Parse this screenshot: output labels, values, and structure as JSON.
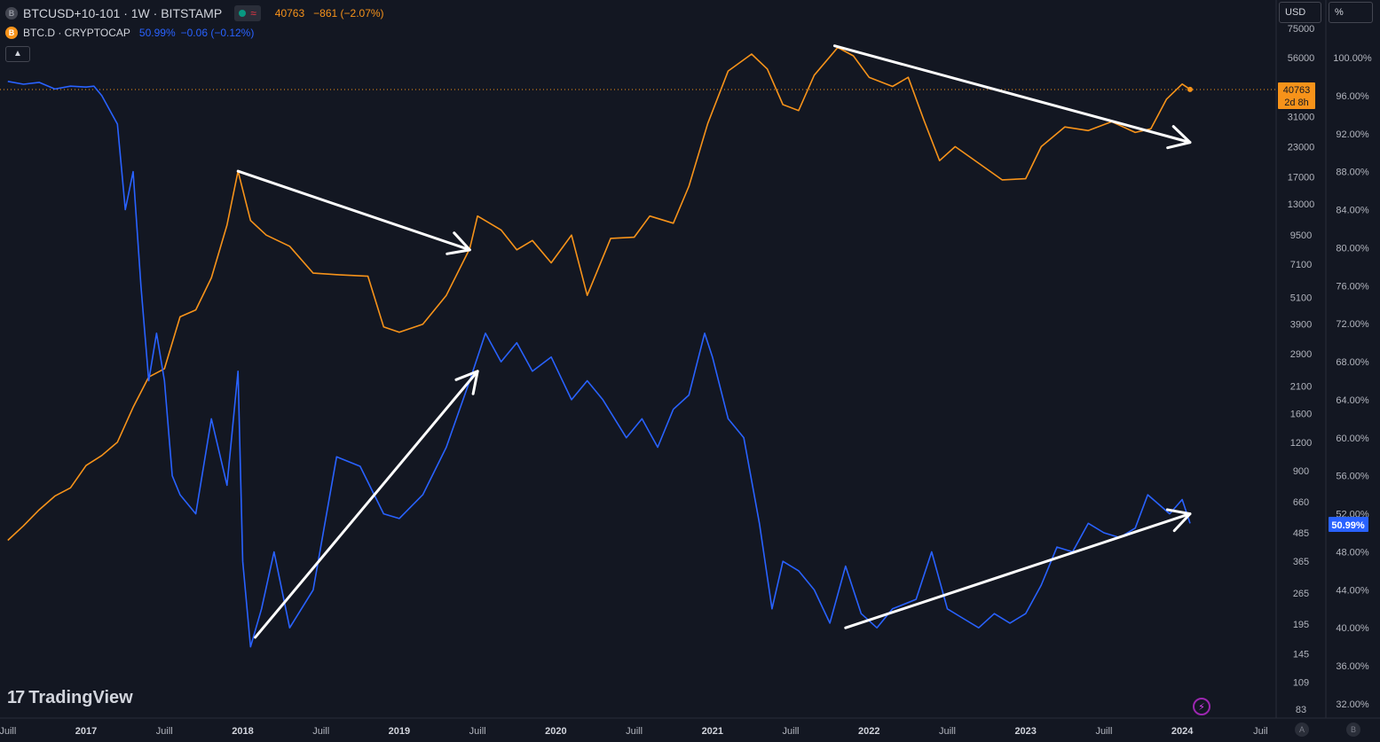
{
  "header": {
    "symbol_icon": "B",
    "title": "BTCUSD+10-101 · 1W · BITSTAMP",
    "status_icons": [
      "market-open-dot-icon",
      "wave-icon"
    ],
    "price": "40763",
    "change": "−861 (−2.07%)",
    "series2_icon": "B",
    "series2_title": "BTC.D · CRYPTOCAP",
    "series2_value": "50.99%",
    "series2_change": "−0.06 (−0.12%)",
    "collapse_icon": "chevron-up-icon"
  },
  "scale_buttons": {
    "usd": "USD",
    "percent": "%"
  },
  "branding": {
    "logo_text": "TradingView",
    "logo_mark": "17"
  },
  "bottom_buttons": {
    "auto": "A",
    "b": "B"
  },
  "colors": {
    "background": "#131722",
    "btc": "#f7931a",
    "dominance": "#2962ff",
    "arrows": "#ffffff",
    "grid": "#2a2e39"
  },
  "chart_data": {
    "type": "line",
    "x_ticks": [
      "Juill",
      "2017",
      "Juill",
      "2018",
      "Juill",
      "2019",
      "Juill",
      "2020",
      "Juill",
      "2021",
      "Juill",
      "2022",
      "Juill",
      "2023",
      "Juill",
      "2024",
      "Juil"
    ],
    "left_axis": {
      "unit": "USD",
      "scale": "log",
      "ticks": [
        75000,
        56000,
        41000,
        31000,
        23000,
        17000,
        13000,
        9500,
        7100,
        5100,
        3900,
        2900,
        2100,
        1600,
        1200,
        900,
        660,
        485,
        365,
        265,
        195,
        145,
        109,
        83
      ],
      "tick_labels": [
        "75000",
        "56000",
        "41000",
        "31000",
        "23000",
        "17000",
        "13000",
        "9500",
        "7100",
        "5100",
        "3900",
        "2900",
        "2100",
        "1600",
        "1200",
        "900",
        "660",
        "485",
        "365",
        "265",
        "195",
        "145",
        "109",
        "83"
      ],
      "last_value": "40763",
      "last_value_countdown": "2d 8h"
    },
    "right_axis": {
      "unit": "%",
      "ticks": [
        100,
        96,
        92,
        88,
        84,
        80,
        76,
        72,
        68,
        64,
        60,
        56,
        52,
        48,
        44,
        40,
        36,
        32
      ],
      "tick_labels": [
        "100.00%",
        "96.00%",
        "92.00%",
        "88.00%",
        "84.00%",
        "80.00%",
        "76.00%",
        "72.00%",
        "68.00%",
        "64.00%",
        "60.00%",
        "56.00%",
        "52.00%",
        "48.00%",
        "44.00%",
        "40.00%",
        "36.00%",
        "32.00%"
      ],
      "last_value": "50.99%"
    },
    "series": [
      {
        "symbol": "BTCUSD",
        "axis": "left",
        "color": "#f7931a",
        "points": [
          [
            2016.5,
            450
          ],
          [
            2016.6,
            520
          ],
          [
            2016.7,
            610
          ],
          [
            2016.8,
            700
          ],
          [
            2016.9,
            760
          ],
          [
            2017.0,
            950
          ],
          [
            2017.1,
            1050
          ],
          [
            2017.2,
            1200
          ],
          [
            2017.3,
            1700
          ],
          [
            2017.4,
            2300
          ],
          [
            2017.5,
            2500
          ],
          [
            2017.6,
            4200
          ],
          [
            2017.7,
            4500
          ],
          [
            2017.8,
            6200
          ],
          [
            2017.9,
            10500
          ],
          [
            2017.97,
            18000
          ],
          [
            2018.05,
            11000
          ],
          [
            2018.15,
            9500
          ],
          [
            2018.3,
            8500
          ],
          [
            2018.45,
            6500
          ],
          [
            2018.6,
            6400
          ],
          [
            2018.8,
            6300
          ],
          [
            2018.9,
            3800
          ],
          [
            2019.0,
            3600
          ],
          [
            2019.15,
            3900
          ],
          [
            2019.3,
            5200
          ],
          [
            2019.45,
            8300
          ],
          [
            2019.5,
            11500
          ],
          [
            2019.65,
            10000
          ],
          [
            2019.75,
            8200
          ],
          [
            2019.85,
            9000
          ],
          [
            2019.97,
            7200
          ],
          [
            2020.1,
            9500
          ],
          [
            2020.2,
            5200
          ],
          [
            2020.35,
            9200
          ],
          [
            2020.5,
            9300
          ],
          [
            2020.6,
            11500
          ],
          [
            2020.75,
            10700
          ],
          [
            2020.85,
            15500
          ],
          [
            2020.97,
            29000
          ],
          [
            2021.1,
            49000
          ],
          [
            2021.25,
            58000
          ],
          [
            2021.35,
            50000
          ],
          [
            2021.45,
            35000
          ],
          [
            2021.55,
            33000
          ],
          [
            2021.65,
            47000
          ],
          [
            2021.8,
            62000
          ],
          [
            2021.9,
            57000
          ],
          [
            2022.0,
            46000
          ],
          [
            2022.15,
            42000
          ],
          [
            2022.25,
            46000
          ],
          [
            2022.35,
            30000
          ],
          [
            2022.45,
            20000
          ],
          [
            2022.55,
            23000
          ],
          [
            2022.7,
            19500
          ],
          [
            2022.85,
            16500
          ],
          [
            2023.0,
            16700
          ],
          [
            2023.1,
            23000
          ],
          [
            2023.25,
            28000
          ],
          [
            2023.4,
            27000
          ],
          [
            2023.55,
            29500
          ],
          [
            2023.7,
            26500
          ],
          [
            2023.8,
            27500
          ],
          [
            2023.9,
            37000
          ],
          [
            2024.0,
            43000
          ],
          [
            2024.05,
            40763
          ]
        ]
      },
      {
        "symbol": "BTC.D",
        "axis": "right",
        "color": "#2962ff",
        "points": [
          [
            2016.5,
            97.5
          ],
          [
            2016.6,
            97.2
          ],
          [
            2016.7,
            97.4
          ],
          [
            2016.8,
            96.7
          ],
          [
            2016.9,
            97.0
          ],
          [
            2017.0,
            96.9
          ],
          [
            2017.05,
            97.0
          ],
          [
            2017.1,
            96.0
          ],
          [
            2017.2,
            93.0
          ],
          [
            2017.25,
            84.0
          ],
          [
            2017.3,
            88.0
          ],
          [
            2017.35,
            76.0
          ],
          [
            2017.4,
            66.0
          ],
          [
            2017.45,
            71.0
          ],
          [
            2017.5,
            66.0
          ],
          [
            2017.55,
            56.0
          ],
          [
            2017.6,
            54.0
          ],
          [
            2017.7,
            52.0
          ],
          [
            2017.8,
            62.0
          ],
          [
            2017.9,
            55.0
          ],
          [
            2017.97,
            67.0
          ],
          [
            2018.0,
            47.0
          ],
          [
            2018.05,
            38.0
          ],
          [
            2018.12,
            42.0
          ],
          [
            2018.2,
            48.0
          ],
          [
            2018.3,
            40.0
          ],
          [
            2018.45,
            44.0
          ],
          [
            2018.6,
            58.0
          ],
          [
            2018.75,
            57.0
          ],
          [
            2018.9,
            52.0
          ],
          [
            2019.0,
            51.5
          ],
          [
            2019.15,
            54.0
          ],
          [
            2019.3,
            59.0
          ],
          [
            2019.45,
            66.0
          ],
          [
            2019.55,
            71.0
          ],
          [
            2019.65,
            68.0
          ],
          [
            2019.75,
            70.0
          ],
          [
            2019.85,
            67.0
          ],
          [
            2019.97,
            68.5
          ],
          [
            2020.1,
            64.0
          ],
          [
            2020.2,
            66.0
          ],
          [
            2020.3,
            64.0
          ],
          [
            2020.45,
            60.0
          ],
          [
            2020.55,
            62.0
          ],
          [
            2020.65,
            59.0
          ],
          [
            2020.75,
            63.0
          ],
          [
            2020.85,
            64.5
          ],
          [
            2020.95,
            71.0
          ],
          [
            2021.0,
            68.5
          ],
          [
            2021.1,
            62.0
          ],
          [
            2021.2,
            60.0
          ],
          [
            2021.3,
            51.0
          ],
          [
            2021.38,
            42.0
          ],
          [
            2021.45,
            47.0
          ],
          [
            2021.55,
            46.0
          ],
          [
            2021.65,
            44.0
          ],
          [
            2021.75,
            40.5
          ],
          [
            2021.85,
            46.5
          ],
          [
            2021.95,
            41.5
          ],
          [
            2022.05,
            40.0
          ],
          [
            2022.15,
            42.0
          ],
          [
            2022.3,
            43.0
          ],
          [
            2022.4,
            48.0
          ],
          [
            2022.5,
            42.0
          ],
          [
            2022.6,
            41.0
          ],
          [
            2022.7,
            40.0
          ],
          [
            2022.8,
            41.5
          ],
          [
            2022.9,
            40.5
          ],
          [
            2023.0,
            41.5
          ],
          [
            2023.1,
            44.5
          ],
          [
            2023.2,
            48.5
          ],
          [
            2023.3,
            48.0
          ],
          [
            2023.4,
            51.0
          ],
          [
            2023.5,
            50.0
          ],
          [
            2023.6,
            49.5
          ],
          [
            2023.7,
            50.5
          ],
          [
            2023.78,
            54.0
          ],
          [
            2023.85,
            53.0
          ],
          [
            2023.92,
            52.0
          ],
          [
            2024.0,
            53.5
          ],
          [
            2024.05,
            50.99
          ]
        ]
      }
    ],
    "annotations": [
      {
        "type": "arrow",
        "from": [
          2017.97,
          18000
        ],
        "to": [
          2019.45,
          8200
        ],
        "axis": "left"
      },
      {
        "type": "arrow",
        "from": [
          2021.78,
          63000
        ],
        "to": [
          2024.05,
          24000
        ],
        "axis": "left"
      },
      {
        "type": "arrow",
        "from": [
          2018.08,
          39.0
        ],
        "to": [
          2019.5,
          67.0
        ],
        "axis": "right"
      },
      {
        "type": "arrow",
        "from": [
          2021.85,
          40.0
        ],
        "to": [
          2024.05,
          52.0
        ],
        "axis": "right"
      }
    ]
  }
}
